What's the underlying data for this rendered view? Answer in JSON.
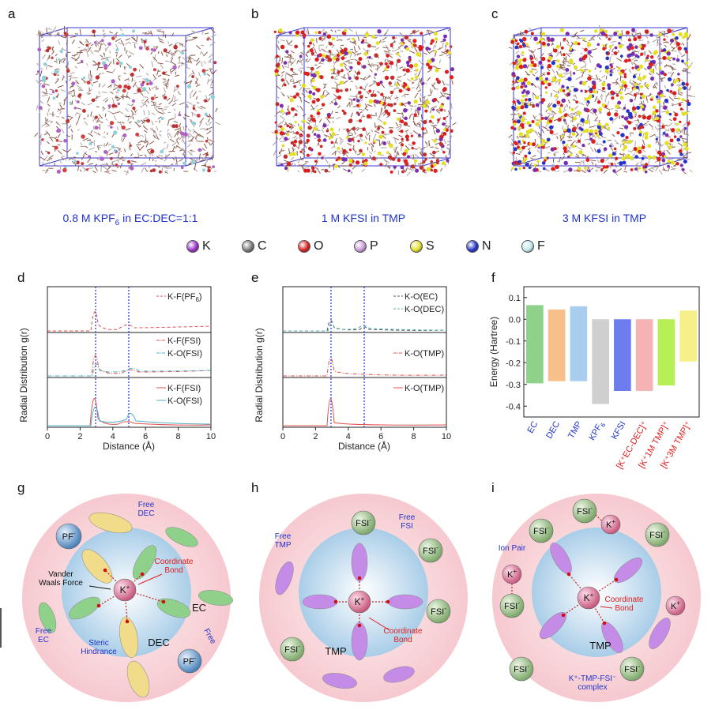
{
  "panels": {
    "a": {
      "letter": "a",
      "caption_main": "0.8 M KPF",
      "caption_sub": "6",
      "caption_rest": " in EC:DEC=1:1"
    },
    "b": {
      "letter": "b",
      "caption": "1 M KFSI in TMP"
    },
    "c": {
      "letter": "c",
      "caption": "3 M KFSI in TMP"
    },
    "d": {
      "letter": "d"
    },
    "e": {
      "letter": "e"
    },
    "f": {
      "letter": "f"
    },
    "g": {
      "letter": "g"
    },
    "h": {
      "letter": "h"
    },
    "i": {
      "letter": "i"
    }
  },
  "legend": [
    {
      "label": "K",
      "color": "#9b30c8"
    },
    {
      "label": "C",
      "color": "#7a7a7a"
    },
    {
      "label": "O",
      "color": "#d81f1f"
    },
    {
      "label": "P",
      "color": "#c89ad6"
    },
    {
      "label": "S",
      "color": "#e3e021"
    },
    {
      "label": "N",
      "color": "#2435c8"
    },
    {
      "label": "F",
      "color": "#bfe8ec"
    }
  ],
  "rdf": {
    "ylabel": "Radial Distribution g(r)",
    "xlabel": "Distance (Å)",
    "xticks": [
      "0",
      "2",
      "4",
      "6",
      "8",
      "10"
    ],
    "d_legends": {
      "top": "K-F(PF",
      "top_sub": "6",
      "top_end": ")",
      "mid1": "K-F(FSI)",
      "mid2": "K-O(FSI)",
      "bot1": "K-F(FSI)",
      "bot2": "K-O(FSI)"
    },
    "e_legends": {
      "top1": "K-O(EC)",
      "top2": "K-O(DEC)",
      "mid": "K-O(TMP)",
      "bot": "K-O(TMP)"
    }
  },
  "chart_data": {
    "type": "bar",
    "title": "",
    "xlabel": "",
    "ylabel": "Energy (Hartree)",
    "ylim": [
      -0.45,
      0.15
    ],
    "yticks": [
      "0.1",
      "0.0",
      "-0.1",
      "-0.2",
      "-0.3",
      "-0.4"
    ],
    "categories": [
      "EC",
      "DEC",
      "TMP",
      "KPF6",
      "KFSI",
      "[K+EC-DEC]+",
      "[K+-1M TMP]+",
      "[K+-3M TMP]+"
    ],
    "category_labels": [
      "EC",
      "DEC",
      "TMP",
      "KPF",
      "KFSI",
      "[K⁺EC-DEC]⁺",
      "[K⁺1M TMP]⁺",
      "[K⁺3M TMP]⁺"
    ],
    "category_label_sub": "6",
    "bars": [
      {
        "name": "EC",
        "top": 0.065,
        "bottom": -0.295,
        "color": "#8fd18b"
      },
      {
        "name": "DEC",
        "top": 0.045,
        "bottom": -0.285,
        "color": "#f7c08a"
      },
      {
        "name": "TMP",
        "top": 0.06,
        "bottom": -0.285,
        "color": "#a9cdee"
      },
      {
        "name": "KPF6",
        "top": 0.0,
        "bottom": -0.39,
        "color": "#cfcfcf"
      },
      {
        "name": "KFSI",
        "top": 0.0,
        "bottom": -0.33,
        "color": "#6d7df0"
      },
      {
        "name": "[K+EC-DEC]+",
        "top": 0.0,
        "bottom": -0.33,
        "color": "#f6b3b3"
      },
      {
        "name": "[K+-1M TMP]+",
        "top": 0.0,
        "bottom": -0.305,
        "color": "#b6ef56"
      },
      {
        "name": "[K+-3M TMP]+",
        "top": 0.04,
        "bottom": -0.195,
        "color": "#f7f08a"
      }
    ],
    "label_colors": {
      "blue": "#2233cc",
      "red": "#e02020"
    }
  },
  "schemes": {
    "g": {
      "free_dec": "Free\nDEC",
      "pf6": "PF",
      "pf6_sub": "6",
      "vdw": "Vander\nWaals Force",
      "coord": "Coordinate\nBond",
      "k": "K",
      "ec": "EC",
      "dec": "DEC",
      "free_ec": "Free\nEC",
      "steric": "Steric\nHindrance",
      "free_pf6": "Free\nPF6",
      "pf6b": "PF"
    },
    "h": {
      "fsi": "FSI",
      "free_fsi": "Free\nFSI",
      "free_tmp": "Free\nTMP",
      "k": "K",
      "coord": "Coordinate\nBond",
      "tmp": "TMP"
    },
    "i": {
      "fsi": "FSI",
      "k": "K",
      "ion_pair": "Ion Pair",
      "coord": "Coordinate\nBond",
      "tmp": "TMP",
      "complex": "K⁺-TMP-FSI⁻\ncomplex"
    }
  }
}
